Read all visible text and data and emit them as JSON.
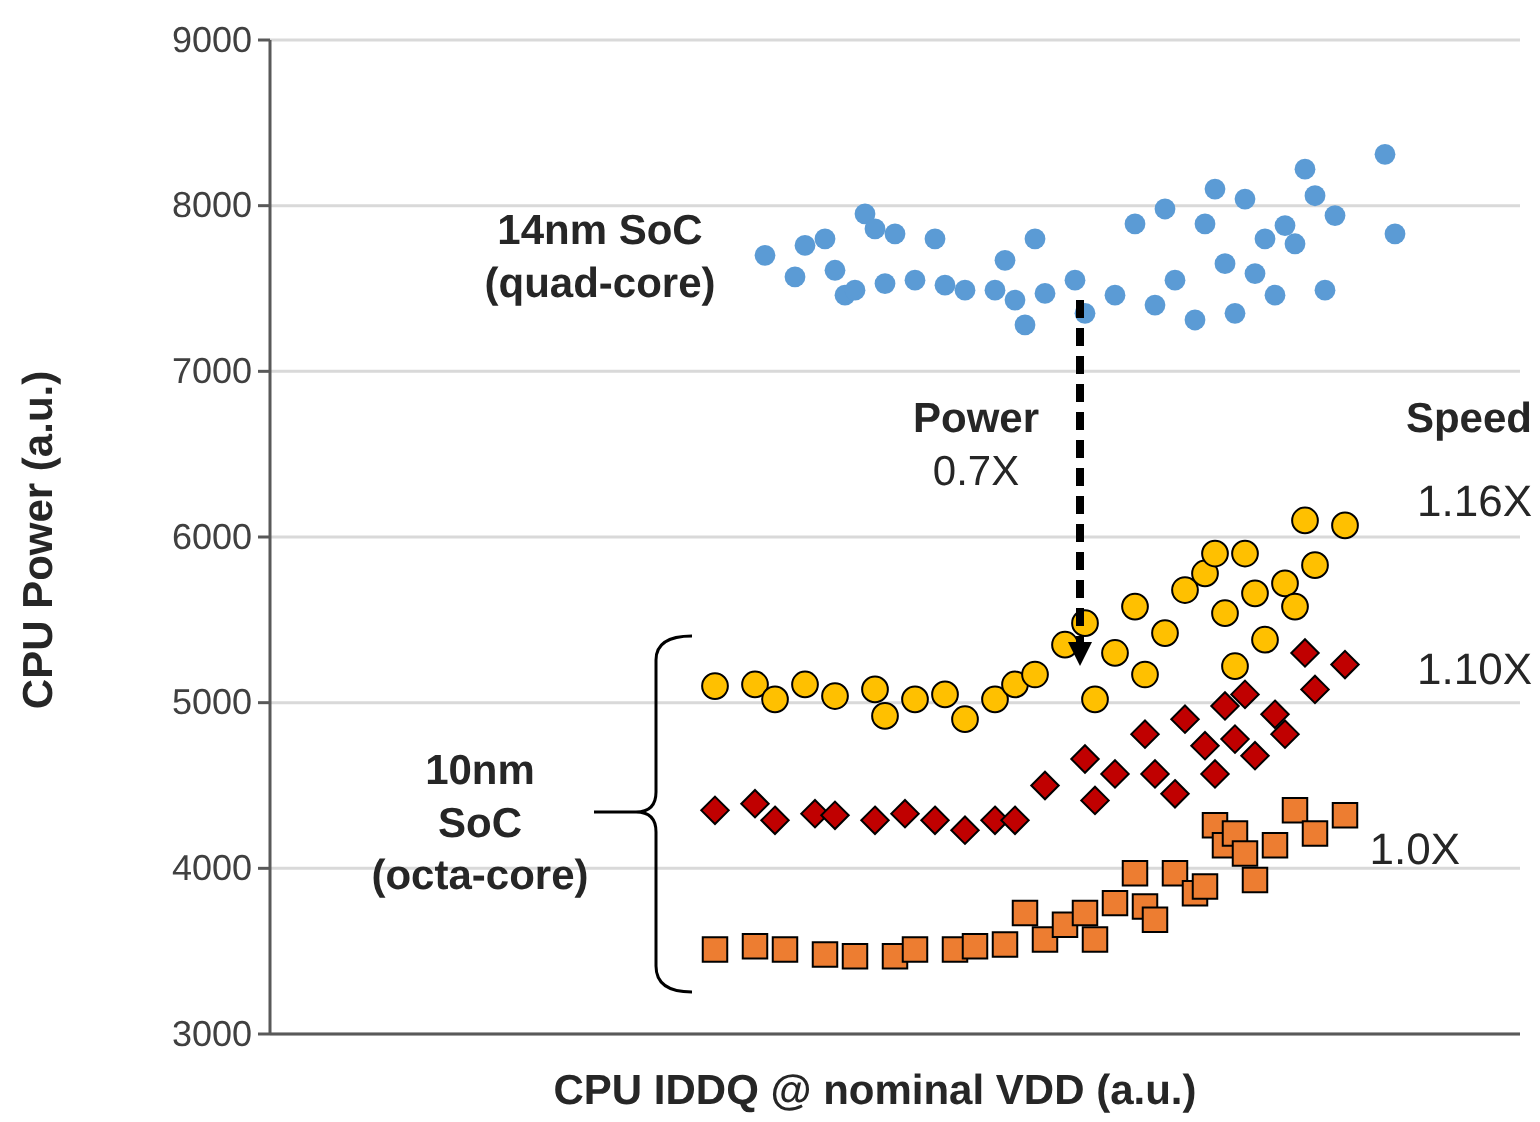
{
  "chart_data": {
    "type": "scatter",
    "xlabel": "CPU IDDQ @ nominal VDD (a.u.)",
    "ylabel": "CPU Power (a.u.)",
    "grid": "y",
    "tick_labels": "y",
    "categories": [
      null,
      null,
      null,
      null,
      null,
      null,
      null,
      null,
      null,
      null,
      null,
      null,
      null,
      null,
      null,
      null,
      null,
      null,
      null,
      null,
      null,
      null,
      null,
      null,
      null,
      null,
      null,
      null,
      null,
      null,
      null,
      null,
      null,
      null,
      null,
      null,
      null,
      null,
      null,
      null,
      null,
      null,
      null,
      null,
      null,
      null,
      null,
      null,
      null,
      null,
      null,
      null,
      null,
      null,
      null,
      null,
      null,
      null,
      null,
      null,
      null,
      null,
      null,
      null,
      null,
      null,
      null,
      null,
      null,
      null,
      null,
      null,
      null,
      null,
      null,
      null,
      null,
      null,
      null,
      null,
      null,
      null,
      null,
      null,
      null,
      null,
      null,
      null,
      null,
      null,
      null,
      null,
      null,
      null,
      null,
      null,
      null,
      null,
      null,
      null,
      null,
      null,
      null,
      null,
      null,
      null,
      null,
      null,
      null,
      null,
      null,
      null,
      null,
      null,
      null,
      null,
      null,
      null,
      null,
      null,
      null,
      null,
      null,
      null,
      null
    ],
    "ylim": [
      3000,
      9000
    ],
    "yticks": [
      3000,
      4000,
      5000,
      6000,
      7000,
      8000,
      9000
    ],
    "series": [
      {
        "name": "14nm SoC (quad-core)",
        "color": "#5b9bd5",
        "marker": "circle",
        "values": [
          null,
          null,
          null,
          null,
          null,
          null,
          null,
          null,
          null,
          null,
          null,
          null,
          null,
          null,
          null,
          null,
          null,
          null,
          null,
          null,
          null,
          null,
          null,
          null,
          null,
          null,
          null,
          null,
          null,
          null,
          null,
          null,
          null,
          null,
          null,
          null,
          null,
          null,
          null,
          null,
          null,
          null,
          null,
          null,
          null,
          null,
          null,
          null,
          null,
          7700,
          null,
          null,
          7570,
          7760,
          null,
          7800,
          7610,
          7460,
          7490,
          7950,
          7860,
          7530,
          7830,
          null,
          7550,
          null,
          7800,
          7520,
          null,
          7490,
          null,
          null,
          7490,
          7670,
          7430,
          7280,
          7800,
          7470,
          null,
          null,
          7550,
          7350,
          null,
          null,
          7460,
          null,
          7890,
          null,
          7400,
          7980,
          7550,
          null,
          7310,
          7890,
          8100,
          7650,
          7350,
          8040,
          7590,
          7800,
          7460,
          7880,
          7770,
          8220,
          8060,
          7490,
          7940,
          null,
          null,
          null,
          null,
          8310,
          7830,
          null,
          null,
          null,
          null,
          null,
          null,
          null,
          null,
          null,
          null,
          null,
          null
        ]
      },
      {
        "name": "1.16X",
        "color": "#ffc000",
        "marker": "circle",
        "values": [
          null,
          null,
          null,
          null,
          null,
          null,
          null,
          null,
          null,
          null,
          null,
          null,
          null,
          null,
          null,
          null,
          null,
          null,
          null,
          null,
          null,
          null,
          null,
          null,
          null,
          null,
          null,
          null,
          null,
          null,
          null,
          null,
          null,
          null,
          null,
          null,
          null,
          null,
          null,
          null,
          null,
          null,
          null,
          null,
          5100,
          null,
          null,
          null,
          5110,
          null,
          5020,
          null,
          null,
          5110,
          null,
          null,
          5040,
          null,
          null,
          null,
          5080,
          4920,
          null,
          null,
          5020,
          null,
          null,
          5050,
          null,
          4900,
          null,
          null,
          5020,
          null,
          5110,
          null,
          5170,
          null,
          null,
          5350,
          null,
          5480,
          5020,
          null,
          5300,
          null,
          5580,
          5170,
          null,
          5420,
          null,
          5680,
          null,
          5780,
          5900,
          5540,
          5220,
          5900,
          5660,
          5380,
          null,
          5720,
          5580,
          6100,
          5830,
          null,
          null,
          6070,
          null,
          null,
          null,
          null,
          null,
          null,
          null,
          null,
          null,
          null,
          null,
          null,
          null,
          null,
          null,
          null,
          null
        ]
      },
      {
        "name": "1.10X",
        "color": "#c00000",
        "marker": "diamond",
        "values": [
          null,
          null,
          null,
          null,
          null,
          null,
          null,
          null,
          null,
          null,
          null,
          null,
          null,
          null,
          null,
          null,
          null,
          null,
          null,
          null,
          null,
          null,
          null,
          null,
          null,
          null,
          null,
          null,
          null,
          null,
          null,
          null,
          null,
          null,
          null,
          null,
          null,
          null,
          null,
          null,
          null,
          null,
          null,
          null,
          4350,
          null,
          null,
          null,
          4390,
          null,
          4290,
          null,
          null,
          null,
          4330,
          null,
          4320,
          null,
          null,
          null,
          4290,
          null,
          null,
          4330,
          null,
          null,
          4290,
          null,
          null,
          4230,
          null,
          null,
          4290,
          null,
          4290,
          null,
          null,
          4500,
          null,
          null,
          null,
          4660,
          4410,
          null,
          4570,
          null,
          null,
          4810,
          4570,
          null,
          4450,
          4900,
          null,
          4740,
          4570,
          4980,
          4780,
          5050,
          4680,
          null,
          4930,
          4810,
          null,
          5300,
          5080,
          null,
          null,
          5230,
          null,
          null,
          null,
          null,
          null,
          null,
          null,
          null,
          null,
          null,
          null,
          null,
          null,
          null,
          null,
          null,
          null
        ]
      },
      {
        "name": "1.0X",
        "color": "#ed7d31",
        "marker": "square",
        "values": [
          null,
          null,
          null,
          null,
          null,
          null,
          null,
          null,
          null,
          null,
          null,
          null,
          null,
          null,
          null,
          null,
          null,
          null,
          null,
          null,
          null,
          null,
          null,
          null,
          null,
          null,
          null,
          null,
          null,
          null,
          null,
          null,
          null,
          null,
          null,
          null,
          null,
          null,
          null,
          null,
          null,
          null,
          null,
          null,
          3510,
          null,
          null,
          null,
          3530,
          null,
          null,
          3510,
          null,
          null,
          null,
          3480,
          null,
          null,
          3470,
          null,
          null,
          null,
          3470,
          null,
          3510,
          null,
          null,
          null,
          3510,
          null,
          3530,
          null,
          null,
          3540,
          null,
          3730,
          null,
          3570,
          null,
          3660,
          null,
          3730,
          3570,
          null,
          3790,
          null,
          3970,
          3770,
          3690,
          null,
          3970,
          null,
          3850,
          3890,
          4260,
          4140,
          4210,
          4090,
          3930,
          null,
          4140,
          null,
          4350,
          null,
          4210,
          null,
          null,
          4320,
          null,
          null,
          null,
          null,
          null,
          null,
          null,
          null,
          null,
          null,
          null,
          null,
          null,
          null,
          null,
          null,
          null
        ]
      }
    ],
    "annotations": [
      "Speed",
      "Power 0.7X",
      "10nm SoC (octa-core)"
    ]
  }
}
